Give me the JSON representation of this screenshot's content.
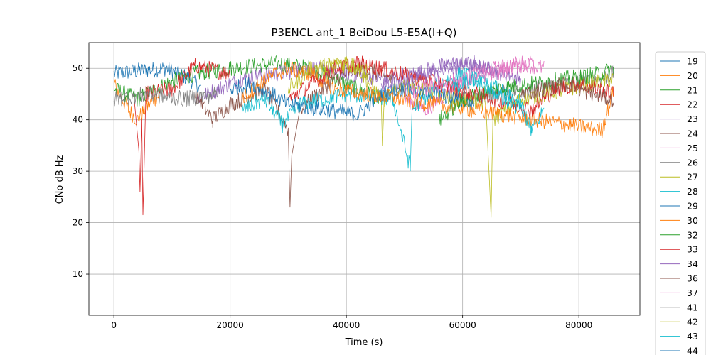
{
  "chart_data": {
    "type": "line",
    "title": "P3ENCL ant_1 BeiDou L5-E5A(I+Q)",
    "xlabel": "Time (s)",
    "ylabel": "CNo dB Hz",
    "xlim": [
      -4300,
      90500
    ],
    "ylim": [
      2,
      55
    ],
    "xticks": [
      0,
      20000,
      40000,
      60000,
      80000
    ],
    "xtick_labels": [
      "0",
      "20000",
      "40000",
      "60000",
      "80000"
    ],
    "yticks": [
      10,
      20,
      30,
      40,
      50
    ],
    "ytick_labels": [
      "10",
      "20",
      "30",
      "40",
      "50"
    ],
    "grid": true,
    "legend_position": "right, outside plot area",
    "series": [
      {
        "name": "19",
        "color": "#1f77b4",
        "segments": [
          [
            0,
            49
          ],
          [
            4000,
            49.5
          ],
          [
            9000,
            50
          ],
          [
            13000,
            48
          ],
          [
            15000,
            46
          ]
        ]
      },
      {
        "name": "20",
        "color": "#ff7f0e",
        "segments": [
          [
            0,
            47
          ],
          [
            2500,
            42
          ],
          [
            4000,
            40
          ],
          [
            6000,
            43
          ],
          [
            8000,
            45
          ]
        ]
      },
      {
        "name": "21",
        "color": "#2ca02c",
        "segments": [
          [
            0,
            46
          ],
          [
            4000,
            44
          ],
          [
            9000,
            47
          ],
          [
            14000,
            49
          ],
          [
            20000,
            50
          ],
          [
            28000,
            51
          ],
          [
            34000,
            50
          ],
          [
            40000,
            47
          ],
          [
            46000,
            44
          ]
        ]
      },
      {
        "name": "22",
        "color": "#d62728",
        "segments": [
          [
            3500,
            44
          ],
          [
            4300,
            34
          ],
          [
            4500,
            26
          ],
          [
            4800,
            40
          ],
          [
            5000,
            21.5
          ],
          [
            5500,
            45
          ],
          [
            10000,
            46
          ],
          [
            14000,
            50.5
          ],
          [
            20000,
            49
          ]
        ]
      },
      {
        "name": "23",
        "color": "#9467bd",
        "segments": [
          [
            14000,
            44
          ],
          [
            18000,
            46
          ],
          [
            22000,
            48
          ],
          [
            28000,
            49
          ],
          [
            34000,
            50
          ],
          [
            40000,
            49
          ],
          [
            46000,
            48
          ],
          [
            52000,
            49
          ],
          [
            58000,
            51
          ],
          [
            64000,
            50
          ],
          [
            70000,
            48
          ]
        ]
      },
      {
        "name": "24",
        "color": "#8c564b",
        "segments": [
          [
            14000,
            45
          ],
          [
            17000,
            40
          ],
          [
            20000,
            43
          ],
          [
            26000,
            46
          ],
          [
            30000,
            38
          ],
          [
            30300,
            23
          ],
          [
            30600,
            33
          ],
          [
            32000,
            42
          ],
          [
            38000,
            48
          ],
          [
            42000,
            50
          ],
          [
            46000,
            49
          ],
          [
            50000,
            46
          ]
        ]
      },
      {
        "name": "25",
        "color": "#e377c2",
        "segments": [
          [
            50000,
            44
          ],
          [
            54000,
            42
          ],
          [
            58000,
            46
          ],
          [
            62000,
            49
          ],
          [
            66000,
            50
          ],
          [
            70000,
            51
          ],
          [
            74000,
            50
          ]
        ]
      },
      {
        "name": "26",
        "color": "#7f7f7f",
        "segments": [
          [
            60000,
            44
          ],
          [
            66000,
            45
          ],
          [
            72000,
            46
          ],
          [
            78000,
            47
          ],
          [
            84000,
            48
          ],
          [
            86000,
            49
          ]
        ]
      },
      {
        "name": "27",
        "color": "#bcbd22",
        "segments": [
          [
            30000,
            46
          ],
          [
            34000,
            50
          ],
          [
            38000,
            51
          ],
          [
            42000,
            50
          ],
          [
            46000,
            44
          ],
          [
            46200,
            35
          ],
          [
            46500,
            44
          ],
          [
            50000,
            47
          ],
          [
            56000,
            45
          ],
          [
            64000,
            43
          ],
          [
            64900,
            21
          ],
          [
            65200,
            40
          ],
          [
            70000,
            44
          ],
          [
            78000,
            46
          ],
          [
            86000,
            48
          ]
        ]
      },
      {
        "name": "28",
        "color": "#17becf",
        "segments": [
          [
            22000,
            42
          ],
          [
            26000,
            44
          ],
          [
            29000,
            39
          ],
          [
            32000,
            43
          ],
          [
            40000,
            45
          ],
          [
            48000,
            44
          ],
          [
            51000,
            30.5
          ],
          [
            51300,
            42
          ],
          [
            56000,
            47
          ],
          [
            60000,
            49
          ],
          [
            66000,
            46
          ],
          [
            70000,
            43
          ],
          [
            72000,
            38
          ],
          [
            74000,
            42
          ]
        ]
      },
      {
        "name": "29",
        "color": "#1f77b4",
        "segments": [
          [
            20000,
            46
          ],
          [
            24000,
            47
          ],
          [
            30000,
            43
          ],
          [
            36000,
            42
          ],
          [
            42000,
            41
          ],
          [
            46000,
            45
          ],
          [
            50000,
            46
          ],
          [
            56000,
            45
          ],
          [
            62000,
            43
          ]
        ]
      },
      {
        "name": "30",
        "color": "#ff7f0e",
        "segments": [
          [
            22000,
            44
          ],
          [
            26000,
            48
          ],
          [
            30000,
            50
          ],
          [
            34000,
            49
          ],
          [
            38000,
            46
          ],
          [
            84000,
            38
          ],
          [
            84500,
            40
          ],
          [
            86000,
            46
          ]
        ]
      },
      {
        "name": "32",
        "color": "#2ca02c",
        "segments": [
          [
            56000,
            40
          ],
          [
            60000,
            44
          ],
          [
            66000,
            46
          ],
          [
            72000,
            47
          ],
          [
            78000,
            48
          ],
          [
            84000,
            49
          ],
          [
            86000,
            50
          ]
        ]
      },
      {
        "name": "33",
        "color": "#d62728",
        "segments": [
          [
            30000,
            44
          ],
          [
            34000,
            47
          ],
          [
            38000,
            50
          ],
          [
            42000,
            51
          ],
          [
            46000,
            50
          ],
          [
            72000,
            42
          ],
          [
            76000,
            46
          ],
          [
            80000,
            47
          ],
          [
            86000,
            45
          ]
        ]
      },
      {
        "name": "34",
        "color": "#9467bd",
        "segments": [
          [
            46000,
            47
          ],
          [
            52000,
            48
          ],
          [
            58000,
            50
          ],
          [
            62000,
            51
          ],
          [
            66000,
            49
          ]
        ]
      },
      {
        "name": "36",
        "color": "#8c564b",
        "segments": [
          [
            70000,
            45
          ],
          [
            74000,
            46
          ],
          [
            78000,
            47
          ],
          [
            82000,
            45
          ],
          [
            86000,
            44
          ]
        ]
      },
      {
        "name": "37",
        "color": "#e377c2",
        "segments": [
          [
            50000,
            45
          ],
          [
            56000,
            47
          ],
          [
            62000,
            48
          ],
          [
            68000,
            50
          ],
          [
            72000,
            51
          ]
        ]
      },
      {
        "name": "41",
        "color": "#7f7f7f",
        "segments": [
          [
            0,
            44
          ],
          [
            6000,
            45
          ],
          [
            12000,
            44
          ],
          [
            18000,
            45
          ]
        ]
      },
      {
        "name": "42",
        "color": "#bcbd22",
        "segments": [
          [
            36000,
            50
          ],
          [
            40000,
            51
          ],
          [
            44000,
            49
          ]
        ]
      },
      {
        "name": "43",
        "color": "#17becf",
        "segments": [
          [
            58000,
            46
          ],
          [
            62000,
            48
          ],
          [
            66000,
            45
          ],
          [
            70000,
            42
          ],
          [
            72000,
            38
          ]
        ]
      },
      {
        "name": "44",
        "color": "#1f77b4",
        "segments": []
      }
    ]
  }
}
